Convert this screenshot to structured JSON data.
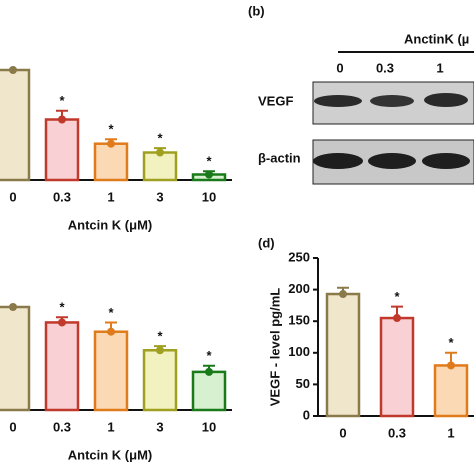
{
  "chart_data": [
    {
      "type": "bar",
      "categories": [
        "0",
        "0.3",
        "1",
        "3",
        "10"
      ],
      "values": [
        100,
        55,
        33,
        25,
        5
      ],
      "errors": [
        0,
        8,
        4,
        4,
        3
      ],
      "annotations": [
        null,
        "*",
        "*",
        "*",
        "*"
      ],
      "xlabel": "Antcin K (μM)",
      "ylim": [
        0,
        100
      ],
      "colors": [
        "#efe6cc",
        "#f9d0d4",
        "#fbd9b5",
        "#f2f2c0",
        "#d6f0d0"
      ],
      "edge_colors": [
        "#8a7a4a",
        "#c0392b",
        "#e07b1b",
        "#a0a020",
        "#1a7a1a"
      ]
    },
    {
      "type": "bar",
      "categories": [
        "0",
        "0.3",
        "1",
        "3",
        "10"
      ],
      "values": [
        100,
        85,
        76,
        58,
        37
      ],
      "errors": [
        0,
        5,
        9,
        4,
        6
      ],
      "annotations": [
        null,
        "*",
        "*",
        "*",
        "*"
      ],
      "xlabel": "Antcin K (μM)",
      "ylim": [
        0,
        100
      ],
      "colors": [
        "#efe6cc",
        "#f9d0d4",
        "#fbd9b5",
        "#f2f2c0",
        "#d6f0d0"
      ],
      "edge_colors": [
        "#8a7a4a",
        "#c0392b",
        "#e07b1b",
        "#a0a020",
        "#1a7a1a"
      ]
    },
    {
      "type": "bar",
      "panel_label": "(d)",
      "ylabel": "VEGF - level pg/mL",
      "categories": [
        "0",
        "0.3",
        "1"
      ],
      "values": [
        193,
        155,
        80
      ],
      "errors": [
        10,
        18,
        20
      ],
      "annotations": [
        null,
        "*",
        "*"
      ],
      "ylim": [
        0,
        250
      ],
      "yticks": [
        0,
        50,
        100,
        150,
        200,
        250
      ],
      "colors": [
        "#efe6cc",
        "#f9d0d4",
        "#fbd9b5"
      ],
      "edge_colors": [
        "#8a7a4a",
        "#c0392b",
        "#e07b1b"
      ]
    }
  ],
  "blot": {
    "label": "(b)",
    "header": "AnctinK (µ",
    "lanes": [
      "0",
      "0.3",
      "1"
    ],
    "rows": [
      "VEGF",
      "β-actin"
    ]
  }
}
